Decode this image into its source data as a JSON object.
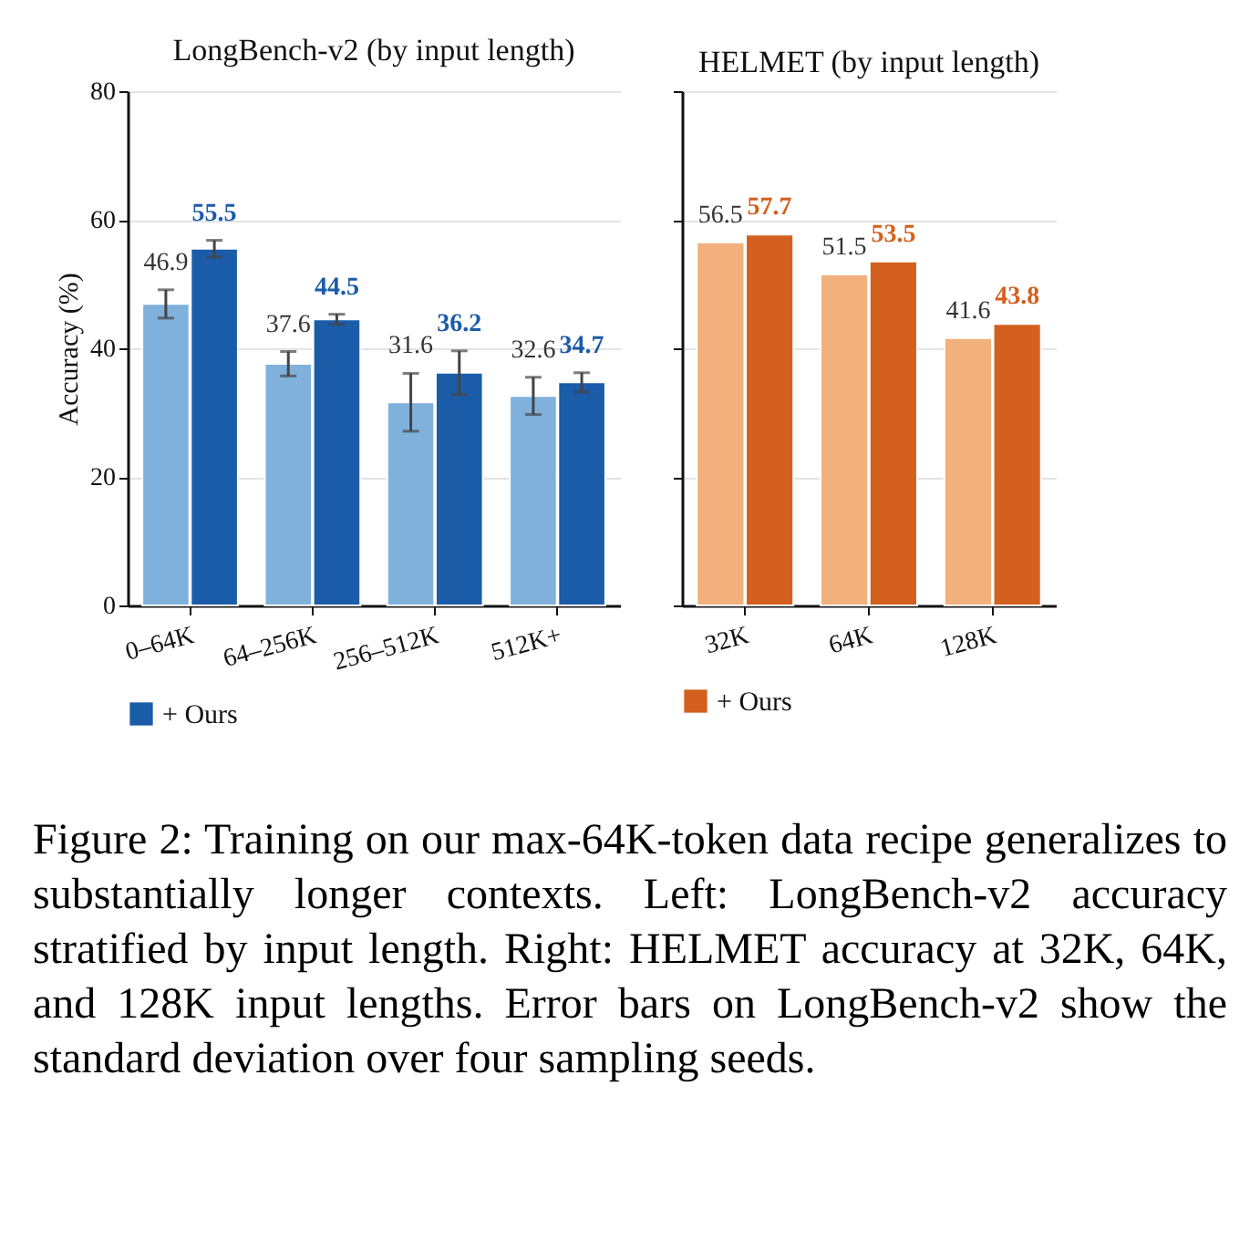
{
  "chart_data": [
    {
      "type": "bar",
      "title": "LongBench-v2 (by input length)",
      "ylabel": "Accuracy (%)",
      "categories": [
        "0–64K",
        "64–256K",
        "256–512K",
        "512K+"
      ],
      "series": [
        {
          "color": "#80b1dd",
          "values": [
            46.9,
            37.6,
            31.6,
            32.6
          ],
          "errors": [
            2.2,
            1.9,
            4.5,
            2.9
          ]
        },
        {
          "name": "+ Ours",
          "color": "#1b5ca9",
          "values": [
            55.5,
            44.5,
            36.2,
            34.7
          ],
          "errors": [
            1.3,
            0.8,
            3.4,
            1.5
          ]
        }
      ],
      "ylim": [
        0,
        80
      ],
      "yticks": [
        0,
        20,
        40,
        60,
        80
      ],
      "grid": "y",
      "data_labels": true,
      "legend": "bottom",
      "annotations": [
        "Figure 2: Training on our max-64K-token data recipe generalizes to substantially longer contexts. Left: LongBench-v2 accuracy stratified by input length. Right: HELMET accuracy at 32K, 64K, and 128K input lengths. Error bars on LongBench-v2 show the standard deviation over four sampling seeds."
      ]
    },
    {
      "type": "bar",
      "title": "HELMET (by input length)",
      "categories": [
        "32K",
        "64K",
        "128K"
      ],
      "series": [
        {
          "color": "#f2b07c",
          "values": [
            56.5,
            51.5,
            41.6
          ]
        },
        {
          "name": "+ Ours",
          "color": "#d3601f",
          "values": [
            57.7,
            53.5,
            43.8
          ]
        }
      ],
      "ylim": [
        0,
        80
      ],
      "yticks": [
        0,
        20,
        40,
        60,
        80
      ],
      "grid": "y",
      "data_labels": true,
      "tick_labels": "x",
      "legend": "bottom"
    }
  ]
}
